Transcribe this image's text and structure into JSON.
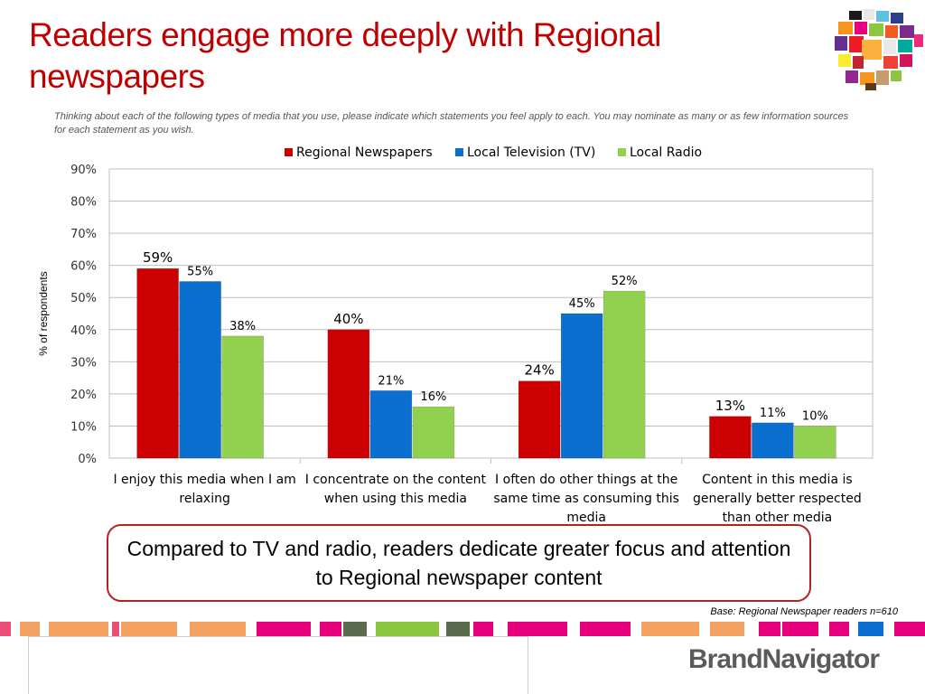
{
  "slide": {
    "title": "Readers engage more deeply with Regional newspapers",
    "subtitle": "Thinking about each of the following types of media that you use, please indicate which statements you feel apply to each.  You may nominate as many or as few information sources for each statement as you wish.",
    "callout": "Compared to TV and radio, readers dedicate greater focus and attention to Regional newspaper content",
    "base_note": "Base: Regional Newspaper readers n=610",
    "brand": "BrandNavigator",
    "logo_icon": "colorful-mosaic-logo-icon",
    "colors": {
      "title": "#c00000",
      "regional": "#cc0000",
      "tv": "#0b6fcf",
      "radio": "#92d050",
      "callout_border": "#b22222"
    }
  },
  "chart_data": {
    "type": "bar",
    "ylabel": "% of respondents",
    "ylim": [
      0,
      90
    ],
    "yticks": [
      "0%",
      "10%",
      "20%",
      "30%",
      "40%",
      "50%",
      "60%",
      "70%",
      "80%",
      "90%"
    ],
    "legend_position": "top",
    "grid": true,
    "categories": [
      [
        "I enjoy this media when I am",
        "relaxing"
      ],
      [
        "I concentrate on the content",
        "when using this media"
      ],
      [
        "I often do other things at the",
        "same time as consuming this",
        "media"
      ],
      [
        "Content in this media is",
        "generally better respected",
        "than other media"
      ]
    ],
    "series": [
      {
        "name": "Regional Newspapers",
        "color": "#cc0000",
        "values": [
          59,
          40,
          24,
          13
        ],
        "labels": [
          "59%",
          "40%",
          "24%",
          "13%"
        ]
      },
      {
        "name": "Local Television (TV)",
        "color": "#0b6fcf",
        "values": [
          55,
          21,
          45,
          11
        ],
        "labels": [
          "55%",
          "21%",
          "45%",
          "11%"
        ]
      },
      {
        "name": "Local Radio",
        "color": "#92d050",
        "values": [
          38,
          16,
          52,
          10
        ],
        "labels": [
          "38%",
          "16%",
          "52%",
          "10%"
        ]
      }
    ]
  }
}
